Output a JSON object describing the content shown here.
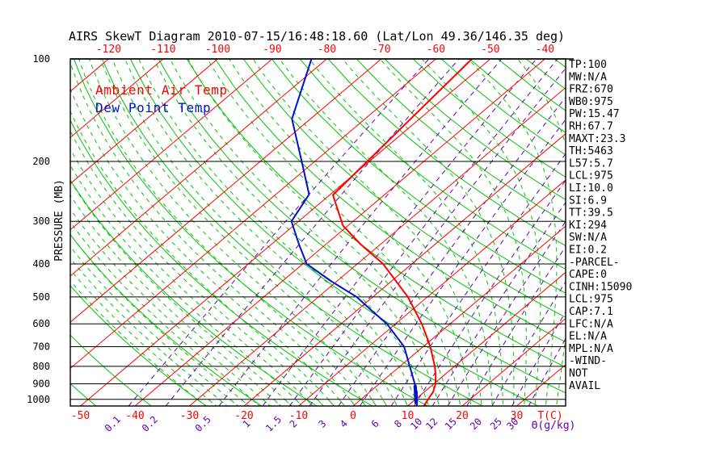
{
  "title": "AIRS SkewT Diagram 2010-07-15/16:48:18.60 (Lat/Lon 49.36/146.35 deg)",
  "legend": {
    "ambient": "Ambient Air Temp",
    "dewpoint": "Dew Point Temp"
  },
  "axes": {
    "pressure_label": "PRESSURE (MB)",
    "pressure_ticks": [
      100,
      200,
      300,
      400,
      500,
      600,
      700,
      800,
      900,
      1000
    ],
    "top_temp_ticks": [
      -120,
      -110,
      -100,
      -90,
      -80,
      -70,
      -60,
      -50,
      -40
    ],
    "bottom_temp_ticks": [
      -50,
      -40,
      -30,
      -20,
      -10,
      0,
      10,
      20,
      30
    ],
    "temp_unit_label": "T(C)",
    "mixing_unit_label": "Θ(g/kg)",
    "mixing_ratio_ticks": [
      0.1,
      0.2,
      0.5,
      1,
      1.5,
      2,
      3,
      4,
      6,
      8,
      10,
      12,
      15,
      20,
      25,
      30
    ]
  },
  "stats": [
    "TP:100",
    "MW:N/A",
    "FRZ:670",
    "WB0:975",
    "PW:15.47",
    "RH:67.7",
    "MAXT:23.3",
    "TH:5463",
    "L57:5.7",
    "LCL:975",
    "LI:10.0",
    "SI:6.9",
    "TT:39.5",
    "KI:294",
    "SW:N/A",
    "EI:0.2",
    "-PARCEL-",
    "CAPE:0",
    "CINH:15090",
    "LCL:975",
    "CAP:7.1",
    "LFC:N/A",
    "EL:N/A",
    "MPL:N/A",
    "-WIND-",
    "NOT",
    "AVAIL"
  ],
  "colors": {
    "isotherm": "#ff0000",
    "dry_adiabat": "#00c400",
    "moist_adiabat": "#00c400",
    "mixing_ratio": "#6600aa",
    "pressure_line": "#000000",
    "ambient_profile": "#ff0000",
    "dewpoint_profile": "#0011cc",
    "title_text": "#000000",
    "stat_text": "#000000"
  },
  "chart_data": {
    "type": "line",
    "subtype": "skewT-logP",
    "xlabel": "T(C)",
    "ylabel": "PRESSURE (MB)",
    "ylim": [
      100,
      1047
    ],
    "x_bottom_range_c": [
      -52,
      39
    ],
    "grid": {
      "isotherm_range_c": [
        -160,
        40
      ],
      "isotherm_step_c": 10,
      "dry_adiabat_theta_range_c": [
        -60,
        180
      ],
      "dry_adiabat_step_c": 10,
      "moist_adiabat_thetaw_range_c": [
        -30,
        38
      ],
      "moist_adiabat_step_c": 2,
      "mixing_ratio_lines_g_kg": [
        0.1,
        0.2,
        0.5,
        1,
        1.5,
        2,
        3,
        4,
        6,
        8,
        10,
        12,
        15,
        20,
        25,
        30
      ]
    },
    "series": [
      {
        "name": "Ambient Air Temp",
        "color": "#ff0000",
        "width": 2,
        "points_p_mb_t_c": [
          [
            100,
            -53.4
          ],
          [
            251,
            -49.4
          ],
          [
            309,
            -40.9
          ],
          [
            350,
            -33.7
          ],
          [
            400,
            -25.3
          ],
          [
            500,
            -13.6
          ],
          [
            600,
            -5.2
          ],
          [
            650,
            -1.8
          ],
          [
            700,
            1.3
          ],
          [
            800,
            6.4
          ],
          [
            850,
            8.5
          ],
          [
            900,
            10.3
          ],
          [
            950,
            11.6
          ],
          [
            1000,
            12.3
          ],
          [
            1047,
            13.0
          ]
        ]
      },
      {
        "name": "Dew Point Temp",
        "color": "#0011cc",
        "width": 2,
        "points_p_mb_t_c": [
          [
            100,
            -82.8
          ],
          [
            150,
            -73.4
          ],
          [
            200,
            -62.4
          ],
          [
            250,
            -53.9
          ],
          [
            300,
            -51.3
          ],
          [
            350,
            -45.0
          ],
          [
            400,
            -39.3
          ],
          [
            450,
            -31.0
          ],
          [
            500,
            -23.0
          ],
          [
            550,
            -17.1
          ],
          [
            600,
            -11.6
          ],
          [
            700,
            -3.5
          ],
          [
            800,
            1.8
          ],
          [
            900,
            6.5
          ],
          [
            950,
            8.6
          ],
          [
            1000,
            10.3
          ],
          [
            1047,
            11.7
          ]
        ]
      },
      {
        "name": "Dew Point surface layer (thick)",
        "color": "#0011cc",
        "width": 4,
        "points_p_mb_t_c": [
          [
            915,
            7.1
          ],
          [
            1022,
            10.8
          ]
        ]
      }
    ]
  }
}
